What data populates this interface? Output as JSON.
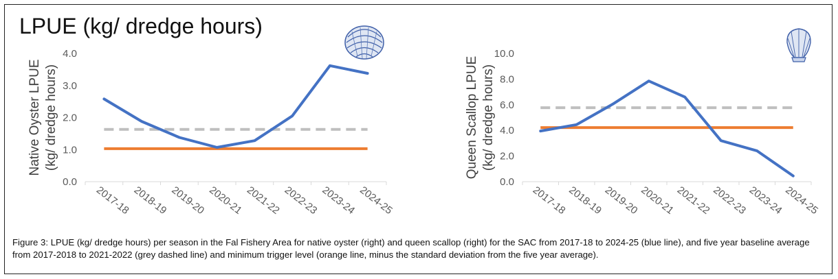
{
  "title": "LPUE (kg/ dredge hours)",
  "caption": "Figure 3: LPUE (kg/ dredge hours) per season in the Fal Fishery Area for native oyster (right) and queen scallop (right) for the SAC from 2017-18 to 2024-25 (blue line), and five year baseline average from 2017-2018 to 2021-2022 (grey dashed line) and minimum trigger level (orange line, minus the standard deviation from the five year average).",
  "colors": {
    "lpue": "#4472C4",
    "baseline": "#BFBFBF",
    "trigger": "#ED7D31",
    "shell": "#3F5FA8"
  },
  "icons": [
    "oyster-shell-icon",
    "scallop-shell-icon"
  ],
  "chart_data": [
    {
      "type": "line",
      "ylabel_line1": "Native Oyster LPUE",
      "ylabel_line2": "(kg/ dredge hours)",
      "categories": [
        "2017-18",
        "2018-19",
        "2019-20",
        "2020-21",
        "2021-22",
        "2022-23",
        "2023-24",
        "2024-25"
      ],
      "yticks": [
        "0.0",
        "1.0",
        "2.0",
        "3.0",
        "4.0"
      ],
      "ylim": [
        0,
        4
      ],
      "series": [
        {
          "values": [
            2.58,
            1.88,
            1.38,
            1.07,
            1.28,
            2.05,
            3.62,
            3.38
          ]
        }
      ],
      "baseline": 1.63,
      "trigger": 1.03,
      "legend": "none",
      "grid": false
    },
    {
      "type": "line",
      "ylabel_line1": "Queen Scallop LPUE",
      "ylabel_line2": "(kg/ dredge hours)",
      "categories": [
        "2017-18",
        "2018-19",
        "2019-20",
        "2020-21",
        "2021-22",
        "2022-23",
        "2023-24",
        "2024-25"
      ],
      "yticks": [
        "0.0",
        "2.0",
        "4.0",
        "6.0",
        "8.0",
        "10.0"
      ],
      "ylim": [
        0,
        10
      ],
      "series": [
        {
          "values": [
            3.95,
            4.45,
            6.05,
            7.85,
            6.6,
            3.2,
            2.4,
            0.45
          ]
        }
      ],
      "baseline": 5.77,
      "trigger": 4.22,
      "legend": "none",
      "grid": false
    }
  ]
}
